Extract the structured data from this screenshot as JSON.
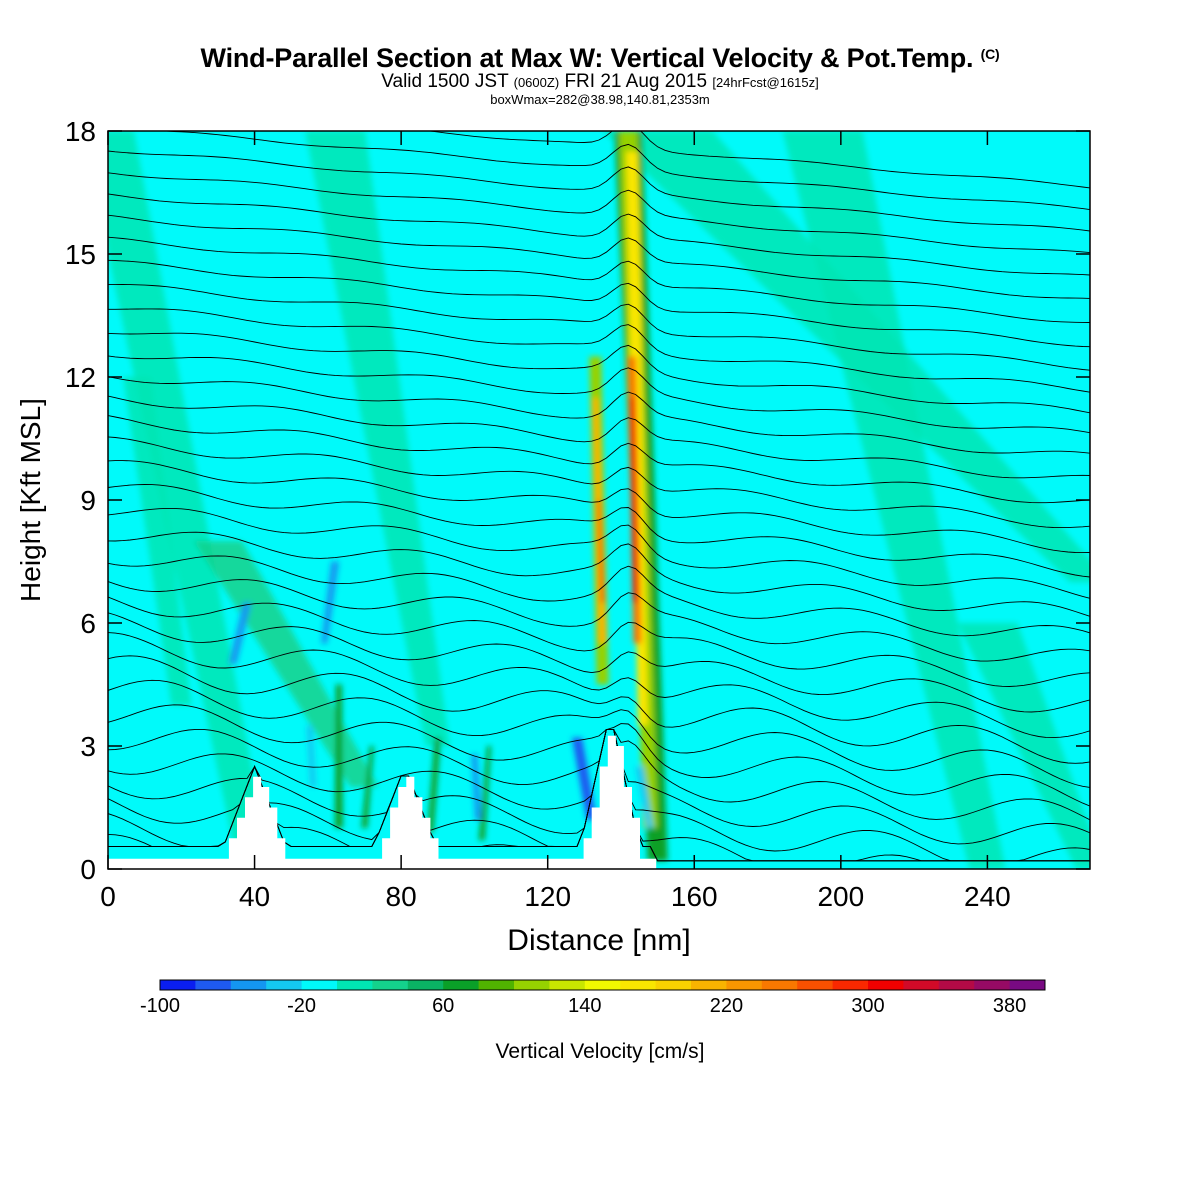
{
  "title": {
    "main": "Wind-Parallel Section at Max W: Vertical Velocity & Pot.Temp.",
    "copyright": "(C)",
    "valid_prefix": "Valid 1500 JST",
    "utc": "(0600Z)",
    "valid_date": "FRI 21 Aug 2015",
    "forecast": "[24hrFcst@1615z]",
    "box_info": "boxWmax=282@38.98,140.81,2353m"
  },
  "chart_data": {
    "type": "heatmap",
    "xlabel": "Distance [nm]",
    "ylabel": "Height [Kft MSL]",
    "xlim": [
      0,
      268
    ],
    "ylim": [
      0,
      18
    ],
    "x_ticks": [
      0,
      40,
      80,
      120,
      160,
      200,
      240
    ],
    "y_ticks": [
      0,
      3,
      6,
      9,
      12,
      15,
      18
    ],
    "colorbar": {
      "label": "Vertical Velocity [cm/s]",
      "levels": [
        -100,
        -80,
        -60,
        -40,
        -20,
        0,
        20,
        40,
        60,
        80,
        100,
        120,
        140,
        160,
        180,
        200,
        220,
        240,
        260,
        280,
        300,
        320,
        340,
        360,
        380,
        400
      ],
      "tick_labels": [
        -100,
        -20,
        60,
        140,
        220,
        300,
        380
      ],
      "colors": [
        "#0a1ef0",
        "#1e5af0",
        "#1496f0",
        "#14c8f0",
        "#00fafa",
        "#00e6b4",
        "#14d28c",
        "#0ab464",
        "#0aa028",
        "#50b400",
        "#96d200",
        "#c8e600",
        "#f0fa00",
        "#fae600",
        "#fad200",
        "#fab400",
        "#fa9600",
        "#fa7800",
        "#fa5000",
        "#fa2800",
        "#f00000",
        "#d20a28",
        "#b40a46",
        "#960a64",
        "#780a82"
      ]
    },
    "updraft_max_cm_s": 282,
    "terrain_peaks": [
      {
        "x": 40,
        "height": 2.3
      },
      {
        "x": 81,
        "height": 2.3
      },
      {
        "x": 137,
        "height": 3.6
      }
    ]
  },
  "colors": {
    "background_field": "#00fafa",
    "weak_updraft": "#00e6b4",
    "terrain": "#ffffff",
    "contour": "#000000"
  }
}
